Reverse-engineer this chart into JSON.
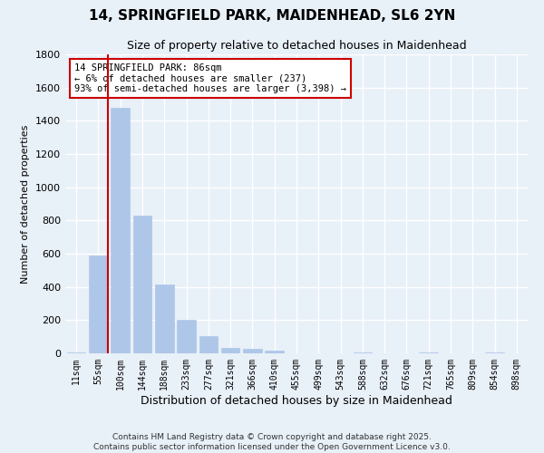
{
  "title": "14, SPRINGFIELD PARK, MAIDENHEAD, SL6 2YN",
  "subtitle": "Size of property relative to detached houses in Maidenhead",
  "xlabel": "Distribution of detached houses by size in Maidenhead",
  "ylabel": "Number of detached properties",
  "bar_labels": [
    "11sqm",
    "55sqm",
    "100sqm",
    "144sqm",
    "188sqm",
    "233sqm",
    "277sqm",
    "321sqm",
    "366sqm",
    "410sqm",
    "455sqm",
    "499sqm",
    "543sqm",
    "588sqm",
    "632sqm",
    "676sqm",
    "721sqm",
    "765sqm",
    "809sqm",
    "854sqm",
    "898sqm"
  ],
  "bar_values": [
    5,
    590,
    1480,
    830,
    415,
    200,
    105,
    35,
    25,
    15,
    0,
    0,
    0,
    5,
    0,
    0,
    5,
    0,
    0,
    5,
    0
  ],
  "bar_color": "#aec6e8",
  "bar_edge_color": "#aec6e8",
  "highlight_line_color": "#cc0000",
  "annotation_text": "14 SPRINGFIELD PARK: 86sqm\n← 6% of detached houses are smaller (237)\n93% of semi-detached houses are larger (3,398) →",
  "annotation_box_color": "#ffffff",
  "annotation_box_edge": "#cc0000",
  "ylim": [
    0,
    1800
  ],
  "yticks": [
    0,
    200,
    400,
    600,
    800,
    1000,
    1200,
    1400,
    1600,
    1800
  ],
  "bg_color": "#e8f0f8",
  "plot_bg_color": "#e8f0f8",
  "grid_color": "#ffffff",
  "footer_line1": "Contains HM Land Registry data © Crown copyright and database right 2025.",
  "footer_line2": "Contains public sector information licensed under the Open Government Licence v3.0."
}
